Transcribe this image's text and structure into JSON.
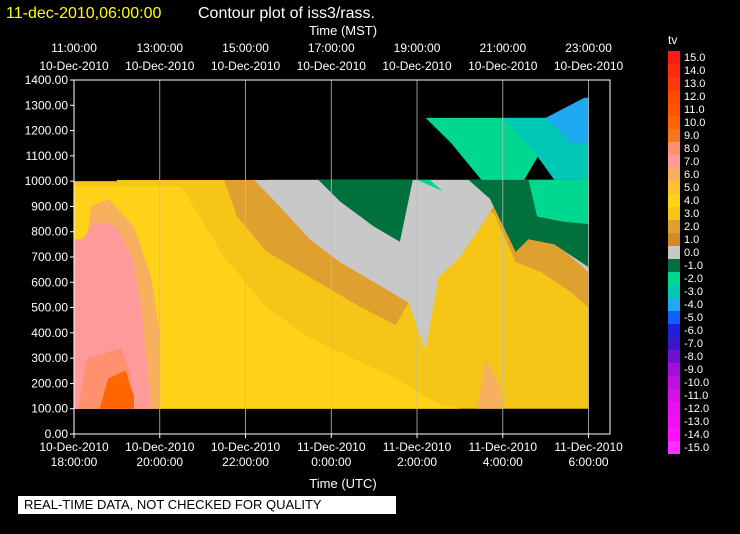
{
  "chart_data": {
    "type": "heatmap",
    "title_left": "11-dec-2010,06:00:00",
    "title": "Contour plot of iss3/rass.",
    "top_axis_title": "Time (MST)",
    "xlabel": "Time (UTC)",
    "ylim": [
      0,
      1400
    ],
    "xlim_hours_utc": [
      18,
      30.5
    ],
    "yticks": [
      "0.00",
      "100.00",
      "200.00",
      "300.00",
      "400.00",
      "500.00",
      "600.00",
      "700.00",
      "800.00",
      "900.00",
      "1000.00",
      "1100.00",
      "1200.00",
      "1300.00",
      "1400.00"
    ],
    "bottom_ticks": [
      {
        "h": 18,
        "date": "10-Dec-2010",
        "time": "18:00:00"
      },
      {
        "h": 20,
        "date": "10-Dec-2010",
        "time": "20:00:00"
      },
      {
        "h": 22,
        "date": "10-Dec-2010",
        "time": "22:00:00"
      },
      {
        "h": 24,
        "date": "11-Dec-2010",
        "time": "0:00:00"
      },
      {
        "h": 26,
        "date": "11-Dec-2010",
        "time": "2:00:00"
      },
      {
        "h": 28,
        "date": "11-Dec-2010",
        "time": "4:00:00"
      },
      {
        "h": 30,
        "date": "11-Dec-2010",
        "time": "6:00:00"
      }
    ],
    "top_ticks": [
      {
        "h": 18,
        "time": "11:00:00",
        "date": "10-Dec-2010"
      },
      {
        "h": 20,
        "time": "13:00:00",
        "date": "10-Dec-2010"
      },
      {
        "h": 22,
        "time": "15:00:00",
        "date": "10-Dec-2010"
      },
      {
        "h": 24,
        "time": "17:00:00",
        "date": "10-Dec-2010"
      },
      {
        "h": 26,
        "time": "19:00:00",
        "date": "10-Dec-2010"
      },
      {
        "h": 28,
        "time": "21:00:00",
        "date": "10-Dec-2010"
      },
      {
        "h": 30,
        "time": "23:00:00",
        "date": "10-Dec-2010"
      }
    ],
    "colorbar": {
      "label": "tv",
      "levels": [
        "15.0",
        "14.0",
        "13.0",
        "12.0",
        "11.0",
        "10.0",
        "9.0",
        "8.0",
        "7.0",
        "6.0",
        "5.0",
        "4.0",
        "3.0",
        "2.0",
        "1.0",
        "0.0",
        "-1.0",
        "-2.0",
        "-3.0",
        "-4.0",
        "-5.0",
        "-6.0",
        "-7.0",
        "-8.0",
        "-9.0",
        "-10.0",
        "-11.0",
        "-12.0",
        "-13.0",
        "-14.0",
        "-15.0"
      ],
      "colors": [
        "#ff1a1a",
        "#ff2a10",
        "#ff3a08",
        "#ff4a00",
        "#ff5500",
        "#ff6600",
        "#f5771a",
        "#ff9070",
        "#ff9a9a",
        "#f7b05e",
        "#ffc030",
        "#ffd21a",
        "#f5c518",
        "#e0a030",
        "#d08c28",
        "#c8c8c8",
        "#00703c",
        "#00d890",
        "#00c8b4",
        "#20a8f0",
        "#1060ff",
        "#2020d8",
        "#3a18c8",
        "#7010d0",
        "#a010d8",
        "#c010e0",
        "#d810e8",
        "#e810f0",
        "#f010f4",
        "#ff10ff",
        "#ff30ff"
      ]
    },
    "no_data_regions": [
      {
        "h0": 18.0,
        "h1": 19.0,
        "y0": 1000,
        "y1": 1400
      },
      {
        "h0": 19.0,
        "h1": 22.5,
        "y0": 1005,
        "y1": 1400
      }
    ],
    "contour_fields": [
      {
        "level": "0.0",
        "points": [
          [
            22.2,
            1005
          ],
          [
            22.8,
            900
          ],
          [
            23.5,
            770
          ],
          [
            24.2,
            680
          ],
          [
            25.0,
            600
          ],
          [
            25.8,
            520
          ],
          [
            26.2,
            330
          ],
          [
            26.5,
            620
          ],
          [
            27.0,
            700
          ],
          [
            27.6,
            850
          ],
          [
            27.9,
            930
          ],
          [
            28.5,
            880
          ],
          [
            29.1,
            770
          ],
          [
            29.6,
            700
          ],
          [
            30.0,
            640
          ],
          [
            30.0,
            1005
          ]
        ]
      },
      {
        "level": "-1.0",
        "points": [
          [
            23.7,
            1005
          ],
          [
            24.2,
            920
          ],
          [
            25.0,
            820
          ],
          [
            25.6,
            760
          ],
          [
            25.9,
            1005
          ]
        ]
      },
      {
        "level": "-1.0",
        "points": [
          [
            27.2,
            1005
          ],
          [
            27.7,
            930
          ],
          [
            28.3,
            720
          ],
          [
            28.6,
            770
          ],
          [
            29.2,
            750
          ],
          [
            30.0,
            660
          ],
          [
            30.0,
            1005
          ]
        ]
      },
      {
        "level": "-2.0",
        "points": [
          [
            26.0,
            1005
          ],
          [
            26.6,
            960
          ],
          [
            26.3,
            1005
          ]
        ]
      },
      {
        "level": "-2.0",
        "points": [
          [
            28.6,
            1005
          ],
          [
            28.8,
            860
          ],
          [
            29.4,
            840
          ],
          [
            30.0,
            830
          ],
          [
            30.0,
            1005
          ]
        ]
      }
    ]
  },
  "banner": "REAL-TIME DATA, NOT CHECKED FOR QUALITY"
}
